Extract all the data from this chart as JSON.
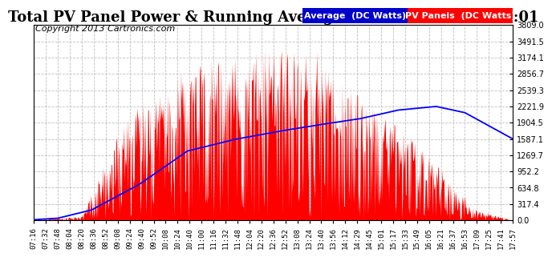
{
  "title": "Total PV Panel Power & Running Average Power Fri Oct 25  18:01",
  "copyright": "Copyright 2013 Cartronics.com",
  "legend_avg": "Average  (DC Watts)",
  "legend_pv": "PV Panels  (DC Watts)",
  "ymin": 0.0,
  "ymax": 3809.0,
  "yticks": [
    0.0,
    317.4,
    634.8,
    952.2,
    1269.7,
    1587.1,
    1904.5,
    2221.9,
    2539.3,
    2856.7,
    3174.1,
    3491.5,
    3809.0
  ],
  "xtick_labels": [
    "07:16",
    "07:32",
    "07:48",
    "08:04",
    "08:20",
    "08:36",
    "08:52",
    "09:08",
    "09:24",
    "09:40",
    "09:52",
    "10:08",
    "10:24",
    "10:40",
    "11:00",
    "11:16",
    "11:32",
    "11:48",
    "12:04",
    "12:20",
    "12:36",
    "12:52",
    "13:08",
    "13:24",
    "13:40",
    "13:56",
    "14:12",
    "14:29",
    "14:45",
    "15:01",
    "15:17",
    "15:33",
    "15:49",
    "16:05",
    "16:21",
    "16:37",
    "16:53",
    "17:09",
    "17:25",
    "17:41",
    "17:57"
  ],
  "pv_color": "#ff0000",
  "avg_color": "#0000ff",
  "bg_color": "#ffffff",
  "grid_color": "#b0b0b0",
  "title_fontsize": 13,
  "tick_fontsize": 7,
  "copyright_fontsize": 8,
  "legend_fontsize": 8
}
